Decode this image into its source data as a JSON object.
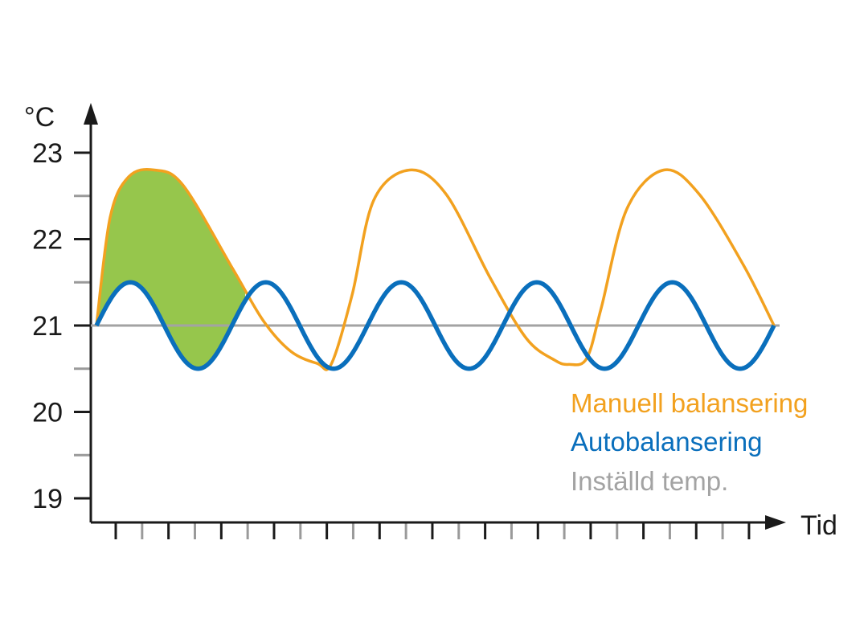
{
  "chart_data": {
    "type": "line",
    "ylabel": "°C",
    "xlabel": "Tid",
    "yticks": [
      "23",
      "22",
      "21",
      "20",
      "19"
    ],
    "ylim": [
      19,
      23
    ],
    "x_tick_count": 25,
    "grid": false,
    "legend_placement": "right",
    "series": [
      {
        "name": "Manuell balansering",
        "color": "#F2A11F",
        "shape": "slow oscillation above set point",
        "peak": 22.8,
        "trough": 20.55,
        "cycles": 2.75
      },
      {
        "name": "Autobalansering",
        "color": "#0A6FBC",
        "shape": "fast sinusoid around set point",
        "amplitude": 0.5,
        "center": 21,
        "cycles": 5
      },
      {
        "name": "Inställd temp.",
        "color": "#A3A3A3",
        "value": 21
      }
    ],
    "highlight_fill": "#96C64C"
  }
}
